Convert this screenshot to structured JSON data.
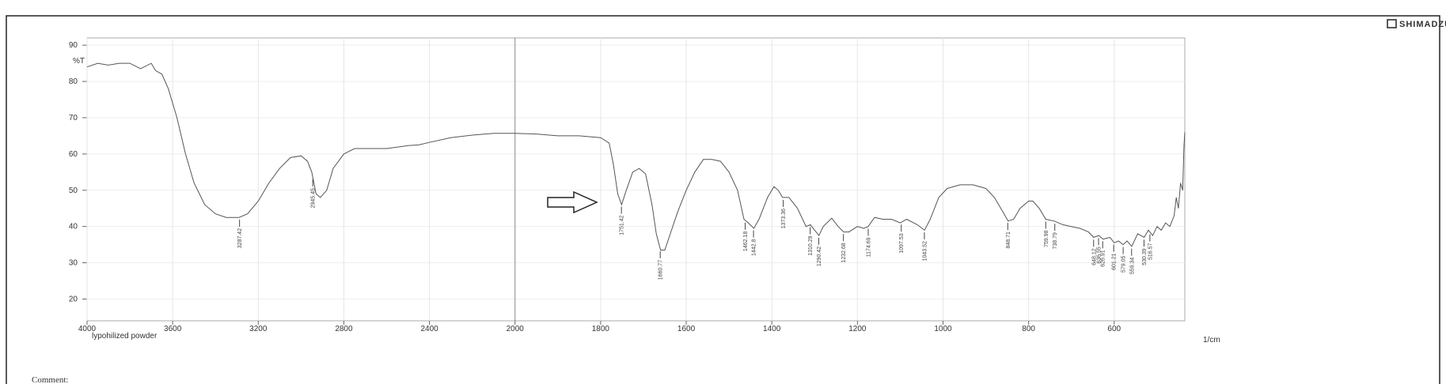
{
  "chart_data": {
    "type": "line",
    "brand": "SHIMADZU",
    "y_label": "%T",
    "x_label": "1/cm",
    "sample": "lypohilized powder",
    "comment": "Comment:",
    "color": "#555555",
    "grid": true,
    "x_scale_break": 2000,
    "x_scale_ratio": 2,
    "xlim": [
      4000,
      435
    ],
    "ylim": [
      14,
      92
    ],
    "xticks": [
      4000,
      3600,
      3200,
      2800,
      2400,
      2000,
      1800,
      1600,
      1400,
      1200,
      1000,
      800,
      600
    ],
    "yticks": [
      20,
      30,
      40,
      50,
      60,
      70,
      80,
      90
    ],
    "x": [
      4000,
      3950,
      3900,
      3850,
      3800,
      3750,
      3700,
      3680,
      3650,
      3620,
      3580,
      3540,
      3500,
      3450,
      3400,
      3350,
      3290,
      3250,
      3200,
      3150,
      3100,
      3050,
      3000,
      2970,
      2950,
      2930,
      2910,
      2880,
      2850,
      2800,
      2750,
      2700,
      2600,
      2500,
      2450,
      2400,
      2300,
      2200,
      2100,
      2000,
      1950,
      1900,
      1850,
      1800,
      1780,
      1770,
      1760,
      1751,
      1740,
      1725,
      1710,
      1695,
      1680,
      1670,
      1660,
      1650,
      1640,
      1620,
      1600,
      1580,
      1560,
      1540,
      1520,
      1500,
      1480,
      1465,
      1455,
      1442,
      1430,
      1410,
      1395,
      1385,
      1375,
      1360,
      1340,
      1320,
      1310,
      1300,
      1290,
      1280,
      1260,
      1245,
      1232,
      1220,
      1200,
      1185,
      1175,
      1160,
      1140,
      1120,
      1100,
      1085,
      1060,
      1043,
      1030,
      1010,
      990,
      960,
      930,
      900,
      880,
      860,
      848,
      835,
      820,
      800,
      790,
      775,
      760,
      740,
      720,
      700,
      680,
      660,
      648,
      636,
      626,
      610,
      600,
      590,
      579,
      570,
      559,
      545,
      530,
      520,
      510,
      500,
      490,
      480,
      470,
      460,
      455,
      450,
      445,
      440,
      437,
      435
    ],
    "values": [
      84,
      85,
      84.5,
      85,
      85,
      83.5,
      85,
      83,
      82,
      78,
      70,
      60,
      52,
      46,
      43.5,
      42.5,
      42.5,
      43.5,
      47,
      52,
      56,
      59,
      59.5,
      58,
      55,
      49,
      48,
      50,
      56,
      60,
      61.5,
      61.5,
      61.5,
      62.3,
      62.5,
      63.2,
      64.5,
      65.2,
      65.7,
      65.7,
      65.5,
      65,
      65,
      64.5,
      63,
      57,
      49,
      46,
      50,
      55,
      56,
      54.5,
      46,
      38,
      33.5,
      33.5,
      37,
      44,
      50,
      55,
      58.5,
      58.5,
      58,
      55,
      50,
      42,
      41,
      39.5,
      42,
      48,
      51,
      50,
      48,
      48,
      45,
      40,
      40.5,
      39,
      37.5,
      40,
      42.3,
      40,
      38.5,
      38.5,
      40,
      39.5,
      40,
      42.5,
      42,
      42,
      41,
      42,
      40.5,
      39,
      42,
      48,
      50.5,
      51.5,
      51.5,
      50.5,
      48,
      44,
      41.5,
      42,
      45,
      47,
      47,
      45,
      42,
      41.5,
      40.5,
      40,
      39.5,
      38.5,
      37,
      37.5,
      36.5,
      37,
      35.5,
      36,
      35,
      36,
      34.5,
      38,
      37,
      39,
      37.5,
      40,
      39,
      41,
      40,
      43,
      48,
      45,
      52,
      50,
      62,
      66
    ],
    "peak_labels": [
      3287.42,
      2945.45,
      1751.42,
      1660.77,
      1462.18,
      1442.8,
      1373.36,
      1310.29,
      1290.42,
      1232.68,
      1174.69,
      1097.53,
      1043.52,
      848.71,
      759.98,
      738.79,
      648.12,
      636.55,
      626.91,
      601.21,
      579.05,
      559.34,
      530.39,
      516.57
    ]
  }
}
